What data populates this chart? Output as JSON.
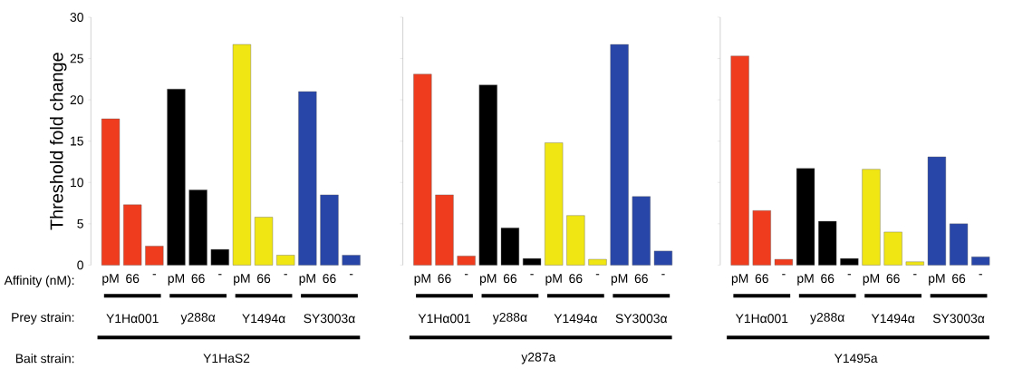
{
  "chart_data": [
    {
      "type": "bar",
      "ylabel": "Threshold fold change",
      "xlabel": "Y1HaS2",
      "categories": [
        "pM",
        "66",
        "-",
        "pM",
        "66",
        "-",
        "pM",
        "66",
        "-",
        "pM",
        "66",
        "-"
      ],
      "values": [
        17.7,
        7.3,
        2.3,
        21.3,
        9.1,
        1.9,
        26.7,
        5.8,
        1.2,
        21.0,
        8.5,
        1.2
      ],
      "colors": [
        "#f03c1e",
        "#f03c1e",
        "#f03c1e",
        "#000000",
        "#000000",
        "#000000",
        "#f0e614",
        "#f0e614",
        "#f0e614",
        "#2846a8",
        "#2846a8",
        "#2846a8"
      ],
      "ylim": [
        0,
        30
      ],
      "yticks": [
        0,
        5,
        10,
        15,
        20,
        25,
        30
      ],
      "annotations": [
        "Y1Hα001",
        "y288α",
        "Y1494α",
        "SY3003α",
        "Affinity (nM):",
        "Prey strain:",
        "Bait strain:"
      ]
    },
    {
      "type": "bar",
      "xlabel": "y287a",
      "categories": [
        "pM",
        "66",
        "-",
        "pM",
        "66",
        "-",
        "pM",
        "66",
        "-",
        "pM",
        "66",
        "-"
      ],
      "values": [
        23.1,
        8.5,
        1.1,
        21.8,
        4.5,
        0.8,
        14.8,
        6.0,
        0.7,
        26.7,
        8.3,
        1.7
      ],
      "colors": [
        "#f03c1e",
        "#f03c1e",
        "#f03c1e",
        "#000000",
        "#000000",
        "#000000",
        "#f0e614",
        "#f0e614",
        "#f0e614",
        "#2846a8",
        "#2846a8",
        "#2846a8"
      ],
      "ylim": [
        0,
        30
      ],
      "yticks": [
        0,
        5,
        10,
        15,
        20,
        25,
        30
      ],
      "tick_labels": "x",
      "annotations": [
        "Y1Hα001",
        "y288α",
        "Y1494α",
        "SY3003α"
      ]
    },
    {
      "type": "bar",
      "xlabel": "Y1495a",
      "categories": [
        "pM",
        "66",
        "-",
        "pM",
        "66",
        "-",
        "pM",
        "66",
        "-",
        "pM",
        "66",
        "-"
      ],
      "values": [
        25.3,
        6.6,
        0.7,
        11.7,
        5.3,
        0.8,
        11.6,
        4.0,
        0.4,
        13.1,
        5.0,
        1.0
      ],
      "colors": [
        "#f03c1e",
        "#f03c1e",
        "#f03c1e",
        "#000000",
        "#000000",
        "#000000",
        "#f0e614",
        "#f0e614",
        "#f0e614",
        "#2846a8",
        "#2846a8",
        "#2846a8"
      ],
      "ylim": [
        0,
        30
      ],
      "yticks": [
        0,
        5,
        10,
        15,
        20,
        25,
        30
      ],
      "tick_labels": "x",
      "annotations": [
        "Y1Hα001",
        "y288α",
        "Y1494α",
        "SY3003α"
      ]
    }
  ]
}
